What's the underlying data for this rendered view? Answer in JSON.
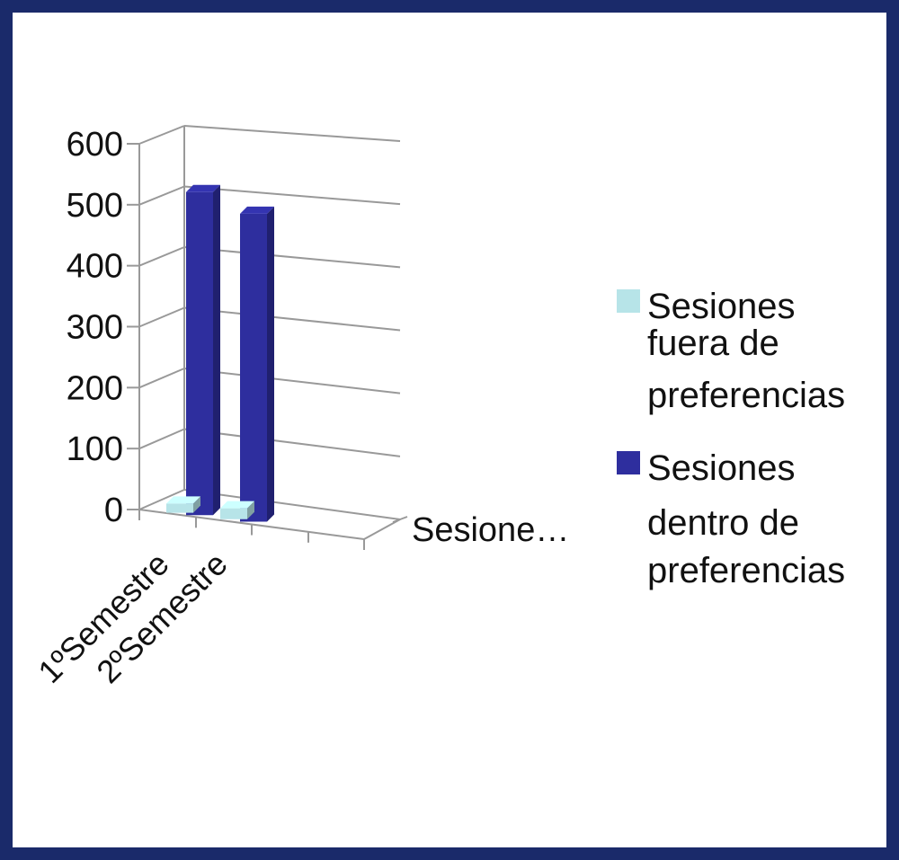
{
  "chart_data": {
    "type": "bar",
    "categories": [
      "1ºSemestre",
      "2ºSemestre"
    ],
    "depth_label": "Sesione…",
    "yticks": [
      "0",
      "100",
      "200",
      "300",
      "400",
      "500",
      "600"
    ],
    "ylim": [
      0,
      600
    ],
    "grid": true,
    "legend_position": "right",
    "series": [
      {
        "name_lines": [
          "Sesiones",
          "fuera de",
          "preferencias"
        ],
        "values": [
          15,
          18
        ],
        "color": "#b7e4e8"
      },
      {
        "name_lines": [
          "Sesiones",
          "dentro de",
          "preferencias"
        ],
        "values": [
          530,
          505
        ],
        "color": "#2e2e9e"
      }
    ],
    "colors": {
      "frame": "#1a2a6a",
      "grid": "#999999"
    }
  }
}
